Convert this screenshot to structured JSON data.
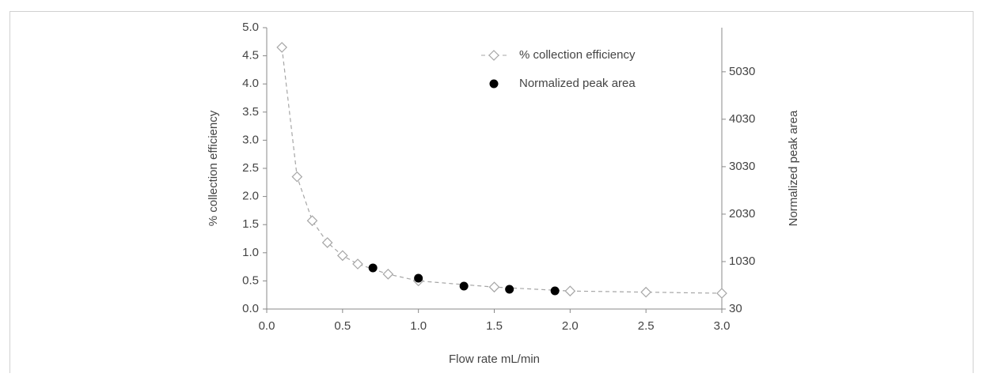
{
  "chart_data": {
    "type": "scatter",
    "x_label": "Flow rate mL/min",
    "y_label": "% collection efficiency",
    "y2_label": "Normalized peak area",
    "xlim": [
      0,
      3
    ],
    "xticks": [
      {
        "value": 0,
        "label": "0.0"
      },
      0.5,
      {
        "value": 1,
        "label": "1.0"
      },
      1.5,
      {
        "value": 2,
        "label": "2.0"
      },
      2.5,
      {
        "value": 3,
        "label": "3.0"
      }
    ],
    "ylim": [
      0,
      5
    ],
    "yticks": [
      {
        "value": 0,
        "label": "0.0"
      },
      0.5,
      {
        "value": 1,
        "label": "1.0"
      },
      1.5,
      {
        "value": 2,
        "label": "2.0"
      },
      2.5,
      {
        "value": 3,
        "label": "3.0"
      },
      3.5,
      {
        "value": 4,
        "label": "4.0"
      },
      4.5,
      {
        "value": 5,
        "label": "5.0"
      }
    ],
    "y2lim": [
      30,
      5960
    ],
    "y2ticks": [
      30,
      1030,
      2030,
      3030,
      4030,
      5030
    ],
    "grid": false,
    "legend": "upper right",
    "series": [
      {
        "name": "% collection efficiency",
        "color": "#a6a6a6",
        "marker": "diamond-open",
        "line_style": "dashed",
        "x": [
          0.1,
          0.2,
          0.3,
          0.4,
          0.5,
          0.6,
          0.8,
          1.0,
          1.5,
          2.0,
          2.5,
          3.0
        ],
        "values": [
          4.65,
          2.35,
          1.57,
          1.18,
          0.95,
          0.8,
          0.62,
          0.5,
          0.39,
          0.32,
          0.3,
          0.28
        ]
      },
      {
        "name": "Normalized peak area",
        "color": "#000000",
        "marker": "circle-filled",
        "line_style": "none",
        "axis": "y2",
        "x": [
          0.7,
          1.0,
          1.3,
          1.6,
          1.9
        ],
        "values": [
          897,
          680,
          513,
          447,
          413
        ]
      }
    ]
  }
}
